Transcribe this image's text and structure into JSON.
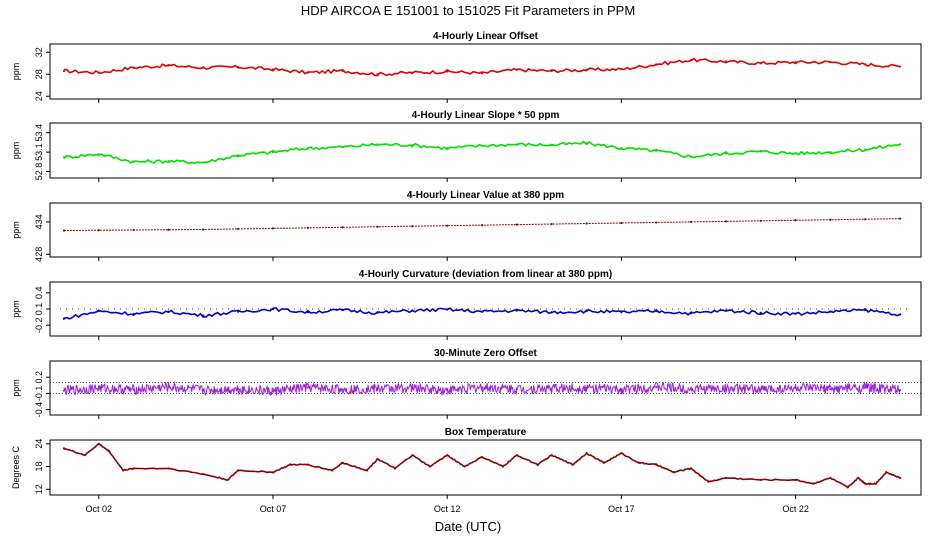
{
  "figure": {
    "title": "HDP   AIRCOA E   151001 to 151025   Fit Parameters in PPM",
    "xlabel": "Date (UTC)"
  },
  "chart_data": [
    {
      "type": "line",
      "title": "4-Hourly Linear Offset",
      "ylabel": "ppm",
      "color": "#e00000",
      "xlim": [
        0.6,
        25.6
      ],
      "ylim": [
        23.5,
        33.5
      ],
      "yticks": [
        24,
        28,
        32
      ],
      "ytick_labels": [
        "24",
        "28",
        "32"
      ],
      "x": [
        1.0,
        2.0,
        3.0,
        4.0,
        5.0,
        6.0,
        7.0,
        8.0,
        9.0,
        10.0,
        11.0,
        12.0,
        13.0,
        14.0,
        15.0,
        16.0,
        17.0,
        18.0,
        19.0,
        20.0,
        21.0,
        22.0,
        23.0,
        24.0,
        25.0
      ],
      "y": [
        28.6,
        28.3,
        29.2,
        29.6,
        29.2,
        29.3,
        28.9,
        28.3,
        28.6,
        28.0,
        28.3,
        28.5,
        28.2,
        28.8,
        28.6,
        28.8,
        28.9,
        29.8,
        30.6,
        30.3,
        30.0,
        30.2,
        30.2,
        29.8,
        29.4
      ],
      "series": [
        {
          "name": "",
          "values": [
            28.6,
            28.3,
            29.2,
            29.6,
            29.2,
            29.3,
            28.9,
            28.3,
            28.6,
            28.0,
            28.3,
            28.5,
            28.2,
            28.8,
            28.6,
            28.8,
            28.9,
            29.8,
            30.6,
            30.3,
            30.0,
            30.2,
            30.2,
            29.8,
            29.4
          ]
        }
      ]
    },
    {
      "type": "line",
      "title": "4-Hourly Linear Slope * 50 ppm",
      "ylabel": "ppm",
      "color": "#00e000",
      "xlim": [
        0.6,
        25.6
      ],
      "ylim": [
        52.7,
        53.55
      ],
      "yticks": [
        52.8,
        53.1,
        53.4
      ],
      "ytick_labels": [
        "52.8",
        "53.1",
        "53.4"
      ],
      "x": [
        1.0,
        2.0,
        3.0,
        4.0,
        5.0,
        6.0,
        7.0,
        8.0,
        9.0,
        10.0,
        11.0,
        12.0,
        13.0,
        14.0,
        15.0,
        16.0,
        17.0,
        18.0,
        19.0,
        20.0,
        21.0,
        22.0,
        23.0,
        24.0,
        25.0
      ],
      "y": [
        53.02,
        53.07,
        52.95,
        52.96,
        52.94,
        53.05,
        53.1,
        53.16,
        53.18,
        53.22,
        53.21,
        53.16,
        53.2,
        53.22,
        53.21,
        53.24,
        53.16,
        53.12,
        53.03,
        53.08,
        53.11,
        53.08,
        53.1,
        53.14,
        53.22
      ],
      "series": [
        {
          "name": "",
          "values": [
            53.02,
            53.07,
            52.95,
            52.96,
            52.94,
            53.05,
            53.1,
            53.16,
            53.18,
            53.22,
            53.21,
            53.16,
            53.2,
            53.22,
            53.21,
            53.24,
            53.16,
            53.12,
            53.03,
            53.08,
            53.11,
            53.08,
            53.1,
            53.14,
            53.22
          ]
        }
      ]
    },
    {
      "type": "line",
      "title": "4-Hourly Linear Value at 380 ppm",
      "ylabel": "ppm",
      "color": "#8b0000",
      "xlim": [
        0.6,
        25.6
      ],
      "ylim": [
        427.5,
        437.5
      ],
      "yticks": [
        428,
        434
      ],
      "ytick_labels": [
        "428",
        "434"
      ],
      "x": [
        1.0,
        2.0,
        3.0,
        4.0,
        5.0,
        6.0,
        7.0,
        8.0,
        9.0,
        10.0,
        11.0,
        12.0,
        13.0,
        14.0,
        15.0,
        16.0,
        17.0,
        18.0,
        19.0,
        20.0,
        21.0,
        22.0,
        23.0,
        24.0,
        25.0
      ],
      "y": [
        432.4,
        432.45,
        432.5,
        432.55,
        432.6,
        432.7,
        432.8,
        432.9,
        433.0,
        433.1,
        433.2,
        433.3,
        433.4,
        433.5,
        433.6,
        433.7,
        433.8,
        433.9,
        434.0,
        434.1,
        434.2,
        434.3,
        434.4,
        434.5,
        434.6
      ],
      "series": [
        {
          "name": "",
          "values": [
            432.4,
            432.45,
            432.5,
            432.55,
            432.6,
            432.7,
            432.8,
            432.9,
            433.0,
            433.1,
            433.2,
            433.3,
            433.4,
            433.5,
            433.6,
            433.7,
            433.8,
            433.9,
            434.0,
            434.1,
            434.2,
            434.3,
            434.4,
            434.5,
            434.6
          ]
        }
      ]
    },
    {
      "type": "line",
      "title": "4-Hourly Curvature (deviation from linear at 380 ppm)",
      "ylabel": "ppm",
      "color": "#0000d0",
      "xlim": [
        0.6,
        25.6
      ],
      "ylim": [
        -0.4,
        0.6
      ],
      "yticks": [
        -0.2,
        0.1,
        0.4
      ],
      "ytick_labels": [
        "-0.2",
        "0.1",
        "0.4"
      ],
      "x": [
        1.0,
        2.0,
        3.0,
        4.0,
        5.0,
        6.0,
        7.0,
        8.0,
        9.0,
        10.0,
        11.0,
        12.0,
        13.0,
        14.0,
        15.0,
        16.0,
        17.0,
        18.0,
        19.0,
        20.0,
        21.0,
        22.0,
        23.0,
        24.0,
        25.0
      ],
      "y": [
        -0.08,
        0.06,
        0.01,
        0.05,
        -0.02,
        0.05,
        0.1,
        0.04,
        0.08,
        0.03,
        0.07,
        0.09,
        0.05,
        0.07,
        0.04,
        0.06,
        0.04,
        0.06,
        0.02,
        0.07,
        0.03,
        0.01,
        0.05,
        0.08,
        0.0
      ],
      "series": [
        {
          "name": "",
          "values": [
            -0.08,
            0.06,
            0.01,
            0.05,
            -0.02,
            0.05,
            0.1,
            0.04,
            0.08,
            0.03,
            0.07,
            0.09,
            0.05,
            0.07,
            0.04,
            0.06,
            0.04,
            0.06,
            0.02,
            0.07,
            0.03,
            0.01,
            0.05,
            0.08,
            0.0
          ]
        }
      ]
    },
    {
      "type": "line",
      "title": "30-Minute Zero Offset",
      "ylabel": "ppm",
      "color": "#9a20e0",
      "xlim": [
        0.6,
        25.6
      ],
      "ylim": [
        -0.5,
        0.5
      ],
      "yticks": [
        -0.4,
        -0.1,
        0.2
      ],
      "ytick_labels": [
        "-0.4",
        "-0.1",
        "0.2"
      ],
      "hlines": [
        0.1,
        -0.1
      ],
      "x": [
        1.0,
        2.0,
        3.0,
        4.0,
        5.0,
        6.0,
        7.0,
        8.0,
        9.0,
        10.0,
        11.0,
        12.0,
        13.0,
        14.0,
        15.0,
        16.0,
        17.0,
        18.0,
        19.0,
        20.0,
        21.0,
        22.0,
        23.0,
        24.0,
        25.0
      ],
      "y": [
        -0.05,
        0.0,
        -0.03,
        0.02,
        -0.04,
        -0.02,
        -0.06,
        0.01,
        -0.03,
        -0.01,
        0.0,
        -0.04,
        0.01,
        -0.02,
        -0.01,
        0.0,
        -0.03,
        0.02,
        -0.02,
        -0.01,
        -0.03,
        0.0,
        -0.02,
        0.01,
        -0.04
      ],
      "series": [
        {
          "name": "",
          "values": [
            -0.05,
            0.0,
            -0.03,
            0.02,
            -0.04,
            -0.02,
            -0.06,
            0.01,
            -0.03,
            -0.01,
            0.0,
            -0.04,
            0.01,
            -0.02,
            -0.01,
            0.0,
            -0.03,
            0.02,
            -0.02,
            -0.01,
            -0.03,
            0.0,
            -0.02,
            0.01,
            -0.04
          ]
        }
      ]
    },
    {
      "type": "line",
      "title": "Box Temperature",
      "ylabel": "Degrees C",
      "color": "#8b0000",
      "xlim": [
        0.6,
        25.6
      ],
      "ylim": [
        10.5,
        25
      ],
      "yticks": [
        12,
        18,
        24
      ],
      "ytick_labels": [
        "12",
        "18",
        "24"
      ],
      "xticks": [
        2,
        7,
        12,
        17,
        22
      ],
      "xtick_labels": [
        "Oct 02",
        "Oct 07",
        "Oct 12",
        "Oct 17",
        "Oct 22"
      ],
      "x": [
        1.0,
        1.6,
        2.0,
        2.3,
        2.7,
        3.0,
        4.0,
        5.0,
        5.7,
        6.0,
        7.0,
        7.5,
        8.0,
        8.7,
        9.0,
        9.7,
        10.0,
        10.5,
        11.0,
        11.5,
        12.0,
        12.5,
        13.0,
        13.6,
        14.0,
        14.6,
        15.0,
        15.6,
        16.0,
        16.5,
        17.0,
        17.5,
        18.0,
        18.5,
        19.0,
        19.5,
        20.0,
        21.0,
        22.0,
        22.5,
        23.0,
        23.5,
        23.8,
        24.0,
        24.3,
        24.6,
        25.0
      ],
      "y": [
        22.8,
        21.0,
        24.0,
        22.0,
        17.0,
        17.5,
        17.5,
        16.0,
        14.5,
        17.0,
        16.5,
        18.5,
        18.5,
        17.0,
        19.0,
        17.0,
        20.0,
        17.5,
        21.0,
        18.0,
        21.0,
        18.0,
        20.5,
        18.0,
        21.0,
        18.5,
        21.0,
        18.5,
        21.5,
        19.0,
        21.5,
        19.0,
        18.5,
        16.5,
        17.5,
        14.0,
        15.0,
        14.5,
        14.5,
        13.5,
        15.0,
        12.5,
        15.0,
        13.5,
        13.5,
        16.5,
        15.0
      ],
      "series": [
        {
          "name": "",
          "values": [
            22.8,
            21.0,
            24.0,
            22.0,
            17.0,
            17.5,
            17.5,
            16.0,
            14.5,
            17.0,
            16.5,
            18.5,
            18.5,
            17.0,
            19.0,
            17.0,
            20.0,
            17.5,
            21.0,
            18.0,
            21.0,
            18.0,
            20.5,
            18.0,
            21.0,
            18.5,
            21.0,
            18.5,
            21.5,
            19.0,
            21.5,
            19.0,
            18.5,
            16.5,
            17.5,
            14.0,
            15.0,
            14.5,
            14.5,
            13.5,
            15.0,
            12.5,
            15.0,
            13.5,
            13.5,
            16.5,
            15.0
          ]
        }
      ]
    }
  ]
}
